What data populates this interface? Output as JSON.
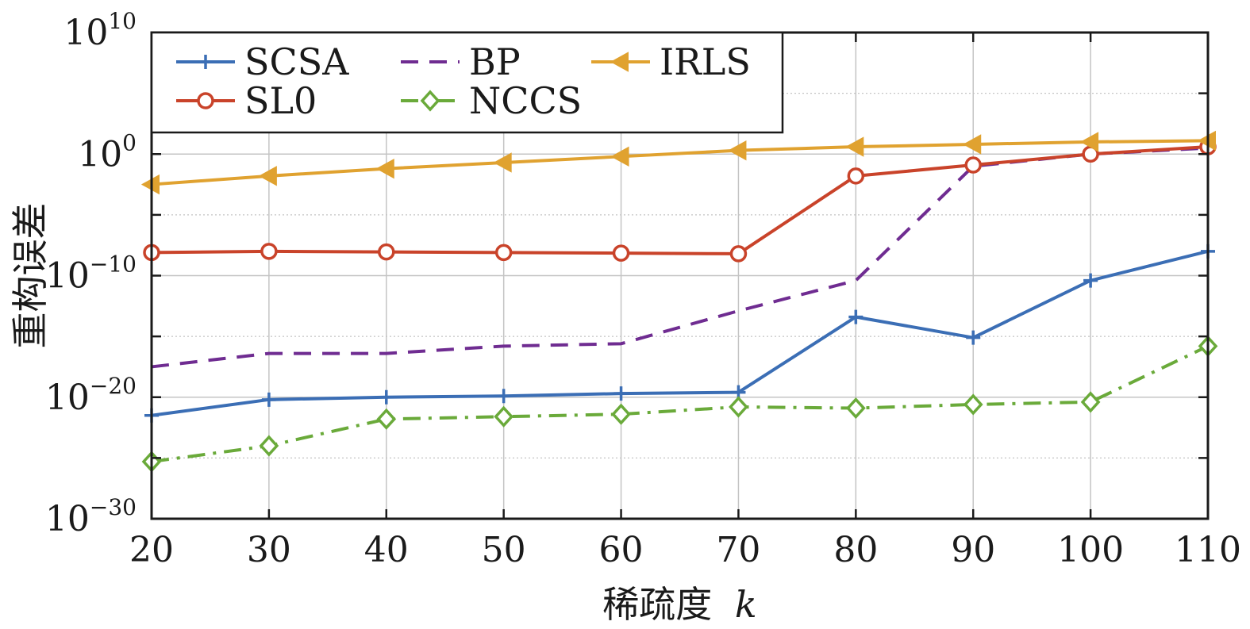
{
  "chart_data": {
    "type": "line",
    "xlabel": "稀疏度",
    "xlabel_var": "k",
    "ylabel": "重构误差",
    "x": [
      20,
      30,
      40,
      50,
      60,
      70,
      80,
      90,
      100,
      110
    ],
    "xlim": [
      20,
      110
    ],
    "xticks": [
      "20",
      "30",
      "40",
      "50",
      "60",
      "70",
      "80",
      "90",
      "100",
      "110"
    ],
    "yscale": "log",
    "ylim_exp": [
      -30,
      10
    ],
    "yticks": [
      {
        "base": "10",
        "exp": "10",
        "value_exp": 10
      },
      {
        "base": "10",
        "exp": "0",
        "value_exp": 0
      },
      {
        "base": "10",
        "exp": "−10",
        "value_exp": -10
      },
      {
        "base": "10",
        "exp": "−20",
        "value_exp": -20
      },
      {
        "base": "10",
        "exp": "−30",
        "value_exp": -30
      }
    ],
    "grid": true,
    "legend_position": "top-left",
    "series": [
      {
        "name": "SCSA",
        "color": "#3b6eb5",
        "dash": "solid",
        "marker": "plus",
        "log10_values": [
          -21.5,
          -20.2,
          -20.0,
          -19.9,
          -19.7,
          -19.6,
          -13.4,
          -15.1,
          -10.4,
          -8.0
        ]
      },
      {
        "name": "SL0",
        "color": "#c9432a",
        "dash": "solid",
        "marker": "circle",
        "log10_values": [
          -8.1,
          -8.0,
          -8.05,
          -8.1,
          -8.15,
          -8.2,
          -1.8,
          -0.9,
          0.0,
          0.6
        ]
      },
      {
        "name": "BP",
        "color": "#6f2c91",
        "dash": "dashed",
        "marker": "none",
        "log10_values": [
          -17.5,
          -16.4,
          -16.4,
          -15.8,
          -15.6,
          -12.9,
          -10.4,
          -1.0,
          0.0,
          0.5
        ]
      },
      {
        "name": "NCCS",
        "color": "#6aaa3a",
        "dash": "dashdot",
        "marker": "diamond",
        "log10_values": [
          -25.3,
          -24.0,
          -21.8,
          -21.6,
          -21.4,
          -20.8,
          -20.9,
          -20.6,
          -20.4,
          -15.8
        ]
      },
      {
        "name": "IRLS",
        "color": "#e0a230",
        "dash": "solid",
        "marker": "triangle-left",
        "log10_values": [
          -2.5,
          -1.8,
          -1.2,
          -0.7,
          -0.2,
          0.3,
          0.6,
          0.8,
          1.0,
          1.1
        ]
      }
    ]
  }
}
